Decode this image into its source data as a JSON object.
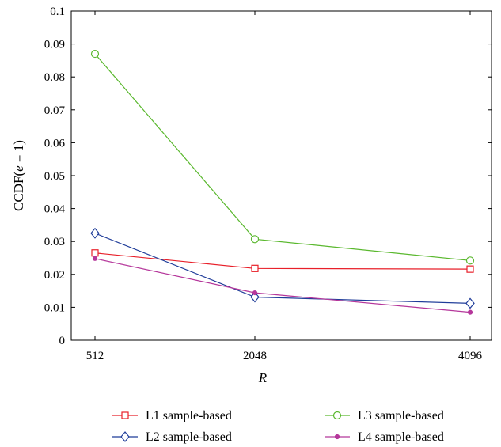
{
  "chart_data": {
    "type": "line",
    "title": "",
    "xlabel": "R",
    "ylabel_prefix": "CCDF(",
    "ylabel_var": "e",
    "ylabel_suffix": " = 1)",
    "x_categories": [
      "512",
      "2048",
      "4096"
    ],
    "ylim": [
      0,
      0.1
    ],
    "y_ticks": [
      0,
      0.01,
      0.02,
      0.03,
      0.04,
      0.05,
      0.06,
      0.07,
      0.08,
      0.09,
      0.1
    ],
    "y_tick_labels": [
      "0",
      "0.01",
      "0.02",
      "0.03",
      "0.04",
      "0.05",
      "0.06",
      "0.07",
      "0.08",
      "0.09",
      "0.1"
    ],
    "grid": false,
    "legend_position": "bottom",
    "series": [
      {
        "name": "L1 sample-based",
        "color": "#e8202a",
        "marker": "square",
        "values": [
          0.0265,
          0.0218,
          0.0216
        ]
      },
      {
        "name": "L2 sample-based",
        "color": "#1f3c99",
        "marker": "diamond",
        "values": [
          0.0325,
          0.0131,
          0.0112
        ]
      },
      {
        "name": "L3 sample-based",
        "color": "#5ab82e",
        "marker": "circle",
        "values": [
          0.087,
          0.0307,
          0.0242
        ]
      },
      {
        "name": "L4 sample-based",
        "color": "#b5379b",
        "marker": "dot",
        "values": [
          0.0248,
          0.0144,
          0.0085
        ]
      }
    ]
  }
}
